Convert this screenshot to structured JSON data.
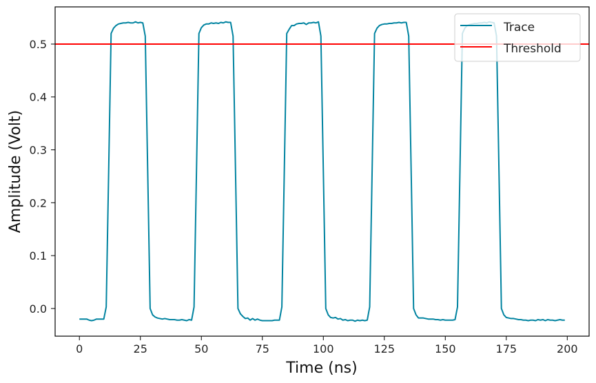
{
  "chart_data": {
    "type": "line",
    "title": "",
    "xlabel": "Time (ns)",
    "ylabel": "Amplitude (Volt)",
    "xlim": [
      -9.95,
      208.95
    ],
    "ylim": [
      -0.0523,
      0.5703
    ],
    "xticks": [
      0,
      25,
      50,
      75,
      100,
      125,
      150,
      175,
      200
    ],
    "xtick_labels": [
      "0",
      "25",
      "50",
      "75",
      "100",
      "125",
      "150",
      "175",
      "200"
    ],
    "yticks": [
      0.0,
      0.1,
      0.2,
      0.3,
      0.4,
      0.5
    ],
    "ytick_labels": [
      "0.0",
      "0.1",
      "0.2",
      "0.3",
      "0.4",
      "0.5"
    ],
    "grid": false,
    "legend_position": "top-right",
    "series": [
      {
        "name": "Trace",
        "color": "#0083a0",
        "x_start": 0,
        "x_step": 1,
        "y": [
          -0.02,
          -0.02,
          -0.02,
          -0.02,
          -0.022,
          -0.023,
          -0.022,
          -0.02,
          -0.02,
          -0.02,
          -0.02,
          0.003,
          0.26,
          0.52,
          0.53,
          0.535,
          0.538,
          0.539,
          0.54,
          0.54,
          0.541,
          0.54,
          0.54,
          0.542,
          0.54,
          0.541,
          0.54,
          0.515,
          0.26,
          0.0,
          -0.012,
          -0.016,
          -0.018,
          -0.019,
          -0.02,
          -0.019,
          -0.02,
          -0.021,
          -0.021,
          -0.021,
          -0.022,
          -0.022,
          -0.021,
          -0.022,
          -0.023,
          -0.021,
          -0.022,
          0.003,
          0.26,
          0.52,
          0.531,
          0.536,
          0.538,
          0.538,
          0.54,
          0.539,
          0.54,
          0.539,
          0.541,
          0.54,
          0.542,
          0.541,
          0.541,
          0.515,
          0.26,
          0.0,
          -0.01,
          -0.015,
          -0.019,
          -0.018,
          -0.022,
          -0.019,
          -0.022,
          -0.02,
          -0.022,
          -0.023,
          -0.023,
          -0.023,
          -0.023,
          -0.023,
          -0.022,
          -0.022,
          -0.022,
          0.003,
          0.26,
          0.52,
          0.528,
          0.535,
          0.535,
          0.538,
          0.539,
          0.539,
          0.54,
          0.537,
          0.54,
          0.54,
          0.541,
          0.54,
          0.542,
          0.515,
          0.26,
          0.0,
          -0.012,
          -0.017,
          -0.018,
          -0.017,
          -0.02,
          -0.019,
          -0.022,
          -0.021,
          -0.023,
          -0.022,
          -0.022,
          -0.024,
          -0.022,
          -0.023,
          -0.022,
          -0.023,
          -0.022,
          0.003,
          0.26,
          0.52,
          0.53,
          0.535,
          0.537,
          0.538,
          0.538,
          0.539,
          0.539,
          0.54,
          0.54,
          0.541,
          0.54,
          0.541,
          0.541,
          0.515,
          0.26,
          0.0,
          -0.012,
          -0.018,
          -0.018,
          -0.018,
          -0.019,
          -0.02,
          -0.02,
          -0.02,
          -0.021,
          -0.021,
          -0.022,
          -0.021,
          -0.022,
          -0.022,
          -0.022,
          -0.022,
          -0.021,
          0.003,
          0.26,
          0.52,
          0.53,
          0.535,
          0.537,
          0.538,
          0.539,
          0.539,
          0.54,
          0.54,
          0.541,
          0.54,
          0.542,
          0.541,
          0.54,
          0.515,
          0.26,
          0.0,
          -0.012,
          -0.017,
          -0.018,
          -0.019,
          -0.019,
          -0.02,
          -0.021,
          -0.021,
          -0.022,
          -0.022,
          -0.023,
          -0.022,
          -0.022,
          -0.023,
          -0.021,
          -0.022,
          -0.021,
          -0.023,
          -0.021,
          -0.022,
          -0.022,
          -0.023,
          -0.022,
          -0.021,
          -0.022,
          -0.022
        ]
      },
      {
        "name": "Threshold",
        "color": "#ff0000",
        "type": "hline",
        "y_value": 0.5
      }
    ]
  }
}
